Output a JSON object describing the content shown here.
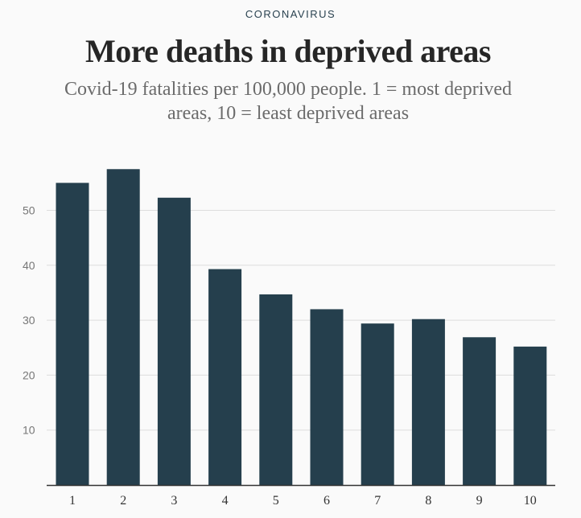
{
  "header": {
    "kicker": "CORONAVIRUS",
    "title": "More deaths in deprived areas",
    "subtitle_line1": "Covid-19 fatalities per 100,000 people. 1 = most deprived",
    "subtitle_line2": "areas, 10 = least deprived areas"
  },
  "colors": {
    "bar": "#253f4d",
    "grid": "#dddddd",
    "axis": "#333333"
  },
  "chart_data": {
    "type": "bar",
    "title": "More deaths in deprived areas",
    "subtitle": "Covid-19 fatalities per 100,000 people. 1 = most deprived areas, 10 = least deprived areas",
    "categories": [
      "1",
      "2",
      "3",
      "4",
      "5",
      "6",
      "7",
      "8",
      "9",
      "10"
    ],
    "values": [
      55,
      57.5,
      52.3,
      39.3,
      34.7,
      32,
      29.4,
      30.2,
      26.9,
      25.2
    ],
    "xlabel": "",
    "ylabel": "",
    "ylim": [
      0,
      60
    ],
    "yticks": [
      10,
      20,
      30,
      40,
      50
    ],
    "grid": true,
    "legend": "none"
  }
}
